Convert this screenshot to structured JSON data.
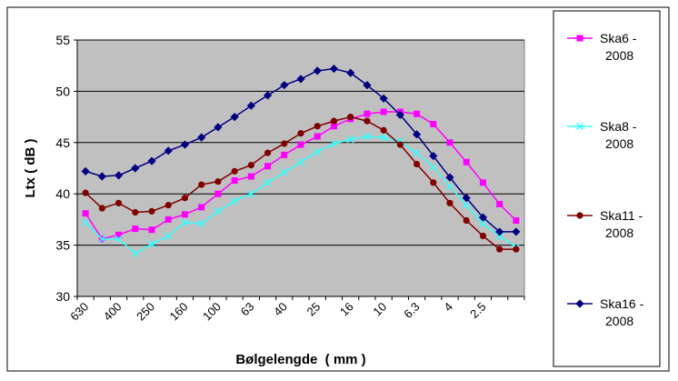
{
  "chart_data": {
    "type": "line",
    "title": "",
    "xlabel": "Bølgelengde  ( mm )",
    "ylabel": "Ltx  ( dB )",
    "ylim": [
      30,
      55
    ],
    "yticks": [
      30,
      35,
      40,
      45,
      50,
      55
    ],
    "grid": true,
    "legend_position": "right",
    "plot_background": "#c0c0c0",
    "x_tick_labels": [
      "630",
      "400",
      "250",
      "160",
      "100",
      "63",
      "40",
      "25",
      "16",
      "10",
      "6.3",
      "4",
      "2.5"
    ],
    "categories": [
      "630",
      "500",
      "400",
      "315",
      "250",
      "200",
      "160",
      "125",
      "100",
      "80",
      "63",
      "50",
      "40",
      "31.5",
      "25",
      "20",
      "16",
      "12.5",
      "10",
      "8",
      "6.3",
      "5",
      "4",
      "3.15",
      "2.5",
      "2",
      "1.6"
    ],
    "series": [
      {
        "name": "Ska6 -\n2008",
        "color": "#ff00ff",
        "marker": "square",
        "values": [
          38.1,
          35.6,
          36.0,
          36.6,
          36.5,
          37.5,
          38.0,
          38.7,
          40.0,
          41.3,
          41.7,
          42.7,
          43.8,
          44.8,
          45.6,
          46.6,
          47.3,
          47.8,
          48.0,
          48.0,
          47.8,
          46.8,
          45.0,
          43.1,
          41.1,
          39.0,
          37.4
        ]
      },
      {
        "name": "Ska8 -\n2008",
        "color": "#33ffff",
        "marker": "x",
        "values": [
          37.2,
          35.6,
          35.6,
          34.2,
          35.1,
          35.9,
          37.2,
          37.1,
          38.3,
          39.3,
          40.0,
          41.1,
          42.1,
          43.1,
          44.1,
          44.9,
          45.3,
          45.6,
          45.5,
          45.1,
          44.0,
          42.6,
          40.7,
          38.9,
          37.1,
          35.9,
          34.8
        ]
      },
      {
        "name": "Ska11 -\n2008",
        "color": "#800000",
        "marker": "circle",
        "values": [
          40.1,
          38.6,
          39.1,
          38.2,
          38.3,
          38.9,
          39.6,
          40.9,
          41.2,
          42.2,
          42.8,
          44.0,
          44.9,
          45.9,
          46.6,
          47.1,
          47.5,
          47.1,
          46.2,
          44.8,
          42.9,
          41.1,
          39.1,
          37.4,
          35.9,
          34.6,
          34.6
        ]
      },
      {
        "name": "Ska16 -\n2008",
        "color": "#000080",
        "marker": "diamond",
        "values": [
          42.2,
          41.7,
          41.8,
          42.5,
          43.2,
          44.2,
          44.8,
          45.5,
          46.5,
          47.5,
          48.6,
          49.6,
          50.6,
          51.2,
          52.0,
          52.2,
          51.8,
          50.6,
          49.3,
          47.7,
          45.8,
          43.7,
          41.6,
          39.6,
          37.7,
          36.3,
          36.3
        ]
      }
    ]
  }
}
